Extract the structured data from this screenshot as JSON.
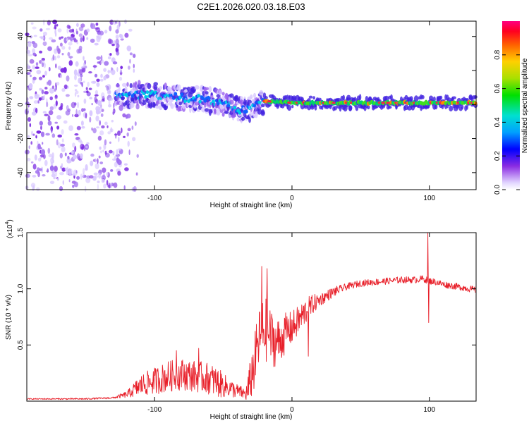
{
  "title": "C2E1.2026.020.03.18.E03",
  "chart_data": [
    {
      "type": "heatmap",
      "name": "spectrogram",
      "xlabel": "Height of straight line (km)",
      "ylabel": "Frequency (Hz)",
      "xlim": [
        -193,
        134
      ],
      "ylim": [
        -50,
        49
      ],
      "xticks": [
        -100,
        0,
        100
      ],
      "yticks": [
        -40,
        -20,
        0,
        20,
        40
      ],
      "signal_band": {
        "center_hz": [
          {
            "x": -125,
            "hz": 5
          },
          {
            "x": -110,
            "hz": 6
          },
          {
            "x": -95,
            "hz": 5
          },
          {
            "x": -80,
            "hz": 4
          },
          {
            "x": -65,
            "hz": 3
          },
          {
            "x": -50,
            "hz": 1
          },
          {
            "x": -40,
            "hz": -3
          },
          {
            "x": -33,
            "hz": -3
          },
          {
            "x": -25,
            "hz": 0
          },
          {
            "x": -20,
            "hz": 2
          },
          {
            "x": 0,
            "hz": 1
          },
          {
            "x": 50,
            "hz": 1
          },
          {
            "x": 100,
            "hz": 1
          },
          {
            "x": 134,
            "hz": 1
          }
        ],
        "width_hz": 6
      },
      "noise_region": {
        "x_range": [
          -193,
          -120
        ],
        "hz_range": [
          -50,
          49
        ]
      },
      "colorbar": {
        "label": "Normalized spectral amplitude",
        "range": [
          0,
          1
        ],
        "ticks": [
          "0.0",
          "0.2",
          "0.4",
          "0.6",
          "0.8"
        ]
      }
    },
    {
      "type": "line",
      "name": "snr",
      "xlabel": "Height of straight line (km)",
      "ylabel": "SNR (10 * v/v)",
      "scale_label": "(x10",
      "scale_exp": "4",
      "scale_close": ")",
      "xlim": [
        -193,
        134
      ],
      "ylim": [
        0,
        1.5
      ],
      "xticks": [
        -100,
        0,
        100
      ],
      "yticks": [
        "0.5",
        "1.0",
        "1.5"
      ],
      "color": "#e8202a",
      "envelope": {
        "x": [
          -193,
          -150,
          -130,
          -120,
          -110,
          -100,
          -90,
          -80,
          -70,
          -60,
          -50,
          -40,
          -33,
          -28,
          -24,
          -20,
          -16,
          -12,
          -8,
          -4,
          0,
          5,
          10,
          15,
          20,
          30,
          40,
          50,
          60,
          70,
          80,
          90,
          95,
          100,
          105,
          110,
          120,
          134
        ],
        "y": [
          0.02,
          0.02,
          0.03,
          0.06,
          0.14,
          0.18,
          0.22,
          0.24,
          0.22,
          0.2,
          0.14,
          0.09,
          0.06,
          0.3,
          0.55,
          0.65,
          0.58,
          0.52,
          0.55,
          0.62,
          0.65,
          0.72,
          0.8,
          0.86,
          0.9,
          0.97,
          1.02,
          1.05,
          1.06,
          1.07,
          1.08,
          1.08,
          1.09,
          1.07,
          1.06,
          1.04,
          1.02,
          0.99
        ]
      },
      "noise_amp": {
        "x": [
          -193,
          -130,
          -120,
          -110,
          -90,
          -70,
          -55,
          -45,
          -35,
          -28,
          -20,
          -12,
          -5,
          0,
          10,
          20,
          40,
          80,
          134
        ],
        "y": [
          0.005,
          0.008,
          0.03,
          0.1,
          0.14,
          0.14,
          0.14,
          0.08,
          0.05,
          0.25,
          0.3,
          0.22,
          0.18,
          0.15,
          0.12,
          0.06,
          0.03,
          0.03,
          0.03
        ]
      },
      "spikes": [
        {
          "x": -84,
          "y": 0.45
        },
        {
          "x": -68,
          "y": 0.47
        },
        {
          "x": -22,
          "y": 1.2
        },
        {
          "x": -18,
          "y": 1.18
        },
        {
          "x": 12,
          "y": 0.4
        },
        {
          "x": 99,
          "y": 1.5
        },
        {
          "x": 99.5,
          "y": 0.7
        }
      ]
    }
  ]
}
